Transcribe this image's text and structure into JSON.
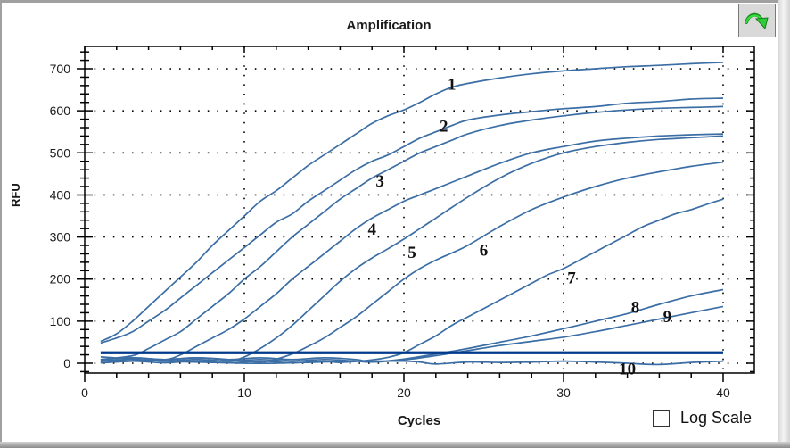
{
  "window": {
    "title": "Amplification",
    "export_button": {
      "icon": "green-curved-arrow-icon",
      "tooltip": ""
    },
    "log_scale": {
      "label": "Log Scale",
      "checked": false
    }
  },
  "colors": {
    "curve": "#3b6ea5",
    "threshold": "#003a8c",
    "grid": "#000000",
    "export_arrow": "#22c92a"
  },
  "chart_data": {
    "type": "line",
    "title": "Amplification",
    "xlabel": "Cycles",
    "ylabel": "RFU",
    "xlim": [
      0,
      42
    ],
    "ylim": [
      -25,
      760
    ],
    "xticks": [
      0,
      10,
      20,
      30,
      40
    ],
    "yticks": [
      0,
      100,
      200,
      300,
      400,
      500,
      600,
      700
    ],
    "grid": true,
    "legend": "none (curves labeled inline 1–10)",
    "threshold": {
      "name": "threshold",
      "value": 25
    },
    "series": [
      {
        "name": "1",
        "label_at": [
          23,
          665
        ],
        "x": [
          1,
          2,
          3,
          4,
          5,
          6,
          7,
          8,
          9,
          10,
          11,
          12,
          13,
          14,
          15,
          16,
          17,
          18,
          19,
          20,
          21,
          22,
          23,
          24,
          26,
          28,
          30,
          32,
          34,
          36,
          38,
          40
        ],
        "y": [
          52,
          70,
          100,
          135,
          170,
          205,
          240,
          280,
          315,
          350,
          385,
          410,
          440,
          470,
          495,
          520,
          545,
          570,
          588,
          602,
          620,
          640,
          656,
          665,
          678,
          688,
          695,
          700,
          705,
          708,
          712,
          715
        ]
      },
      {
        "name": "2",
        "label_at": [
          22.5,
          565
        ],
        "x": [
          1,
          2,
          3,
          4,
          5,
          6,
          7,
          8,
          9,
          10,
          11,
          12,
          13,
          14,
          15,
          16,
          17,
          18,
          19,
          20,
          21,
          22,
          23,
          24,
          26,
          28,
          30,
          32,
          34,
          36,
          38,
          40
        ],
        "y": [
          48,
          60,
          75,
          100,
          125,
          155,
          185,
          215,
          245,
          275,
          305,
          335,
          355,
          385,
          410,
          435,
          460,
          480,
          495,
          515,
          535,
          550,
          565,
          578,
          590,
          598,
          605,
          610,
          618,
          622,
          628,
          630
        ]
      },
      {
        "name": "3",
        "label_at": [
          18.5,
          435
        ],
        "x": [
          3,
          4,
          5,
          6,
          7,
          8,
          9,
          10,
          11,
          12,
          13,
          14,
          15,
          16,
          17,
          18,
          19,
          20,
          21,
          22,
          23,
          24,
          26,
          28,
          30,
          32,
          34,
          36,
          38,
          40
        ],
        "y": [
          18,
          35,
          55,
          75,
          105,
          135,
          165,
          200,
          230,
          265,
          300,
          330,
          360,
          390,
          415,
          440,
          460,
          480,
          500,
          515,
          530,
          545,
          565,
          578,
          588,
          596,
          602,
          606,
          608,
          610
        ]
      },
      {
        "name": "4",
        "label_at": [
          18,
          320
        ],
        "x": [
          5,
          6,
          7,
          8,
          9,
          10,
          11,
          12,
          13,
          14,
          15,
          16,
          17,
          18,
          19,
          20,
          21,
          22,
          24,
          26,
          28,
          30,
          32,
          34,
          36,
          38,
          40
        ],
        "y": [
          8,
          20,
          40,
          60,
          80,
          105,
          135,
          165,
          200,
          230,
          260,
          290,
          320,
          345,
          365,
          385,
          400,
          415,
          445,
          475,
          500,
          515,
          528,
          535,
          540,
          543,
          545
        ]
      },
      {
        "name": "5",
        "label_at": [
          20.5,
          265
        ],
        "x": [
          9,
          10,
          11,
          12,
          13,
          14,
          15,
          16,
          17,
          18,
          19,
          20,
          21,
          22,
          24,
          26,
          28,
          30,
          32,
          34,
          36,
          38,
          40
        ],
        "y": [
          5,
          15,
          35,
          60,
          90,
          125,
          160,
          195,
          225,
          250,
          272,
          295,
          320,
          345,
          395,
          440,
          475,
          500,
          515,
          525,
          532,
          536,
          540
        ]
      },
      {
        "name": "6",
        "label_at": [
          25,
          270
        ],
        "x": [
          11,
          12,
          13,
          14,
          15,
          16,
          17,
          18,
          19,
          20,
          21,
          22,
          23,
          24,
          26,
          28,
          30,
          32,
          34,
          36,
          38,
          40
        ],
        "y": [
          3,
          10,
          22,
          40,
          60,
          85,
          110,
          140,
          170,
          200,
          225,
          245,
          262,
          280,
          325,
          365,
          395,
          420,
          440,
          455,
          468,
          478
        ]
      },
      {
        "name": "7",
        "label_at": [
          30.5,
          205
        ],
        "x": [
          16,
          18,
          19,
          20,
          21,
          22,
          23,
          24,
          25,
          26,
          27,
          28,
          29,
          30,
          31,
          32,
          33,
          34,
          35,
          36,
          37,
          38,
          39,
          40
        ],
        "y": [
          2,
          8,
          14,
          25,
          45,
          65,
          90,
          110,
          130,
          150,
          170,
          190,
          210,
          225,
          245,
          265,
          285,
          305,
          325,
          340,
          355,
          365,
          378,
          390
        ]
      },
      {
        "name": "8",
        "label_at": [
          34.5,
          135
        ],
        "x": [
          18,
          20,
          22,
          24,
          26,
          28,
          30,
          32,
          34,
          36,
          38,
          40
        ],
        "y": [
          3,
          10,
          22,
          35,
          50,
          65,
          82,
          100,
          118,
          140,
          160,
          175
        ]
      },
      {
        "name": "9",
        "label_at": [
          36.5,
          112
        ],
        "x": [
          18,
          20,
          22,
          24,
          26,
          28,
          30,
          32,
          34,
          36,
          38,
          40
        ],
        "y": [
          3,
          8,
          18,
          30,
          42,
          52,
          62,
          75,
          90,
          105,
          120,
          135
        ]
      },
      {
        "name": "10",
        "label_at": [
          34,
          -12
        ],
        "x": [
          1,
          3,
          5,
          8,
          10,
          12,
          14,
          16,
          18,
          20,
          21,
          22,
          24,
          26,
          28,
          30,
          32,
          34,
          36,
          38,
          40
        ],
        "y": [
          15,
          10,
          5,
          2,
          0,
          0,
          2,
          4,
          5,
          5,
          3,
          -2,
          3,
          2,
          3,
          5,
          3,
          0,
          -3,
          2,
          5
        ]
      }
    ]
  }
}
